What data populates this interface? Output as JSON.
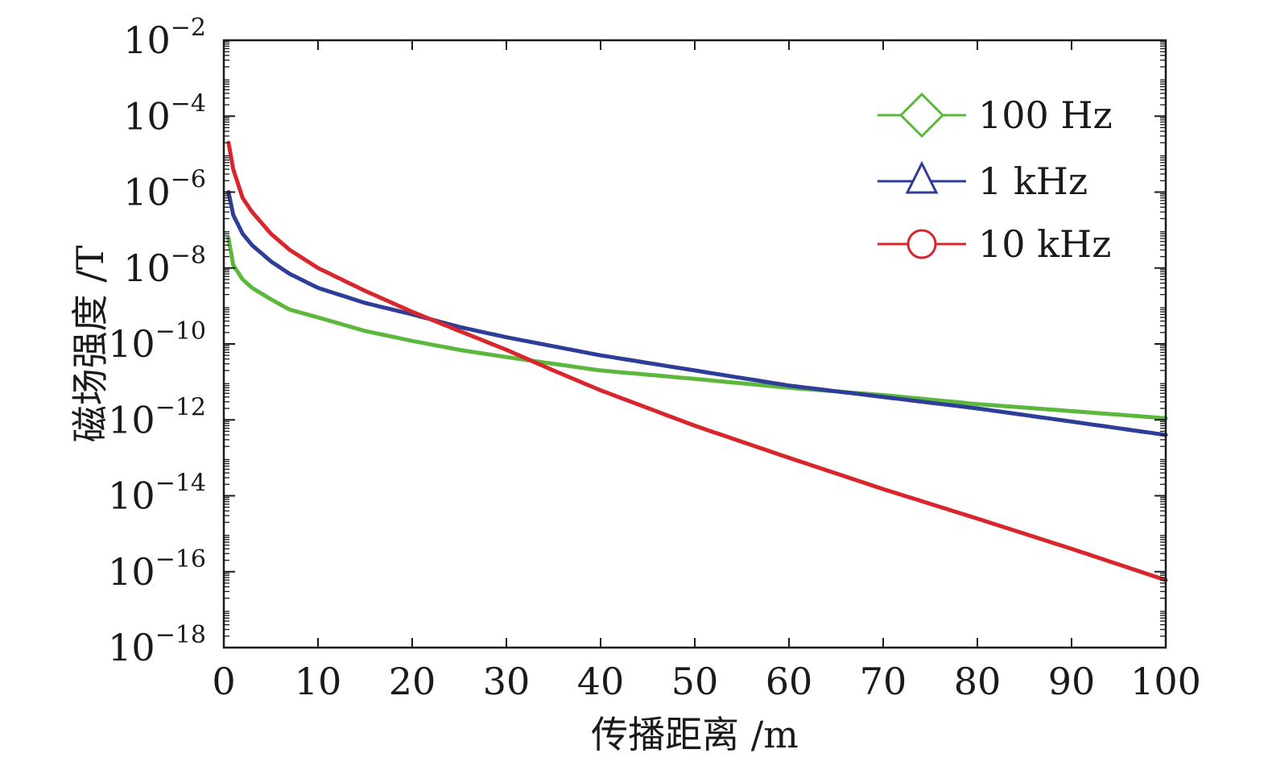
{
  "chart_data": {
    "type": "line",
    "title": "",
    "xlabel": "传播距离 /m",
    "ylabel": "磁场强度 /T",
    "xlim": [
      0,
      100
    ],
    "ylim": [
      1e-18,
      0.01
    ],
    "yscale": "log",
    "grid": false,
    "legend_position": "top-right",
    "x_ticks": [
      {
        "value": 0,
        "label": "0"
      },
      {
        "value": 10,
        "label": "10"
      },
      {
        "value": 20,
        "label": "20"
      },
      {
        "value": 30,
        "label": "30"
      },
      {
        "value": 40,
        "label": "40"
      },
      {
        "value": 50,
        "label": "50"
      },
      {
        "value": 60,
        "label": "60"
      },
      {
        "value": 70,
        "label": "70"
      },
      {
        "value": 80,
        "label": "80"
      },
      {
        "value": 90,
        "label": "90"
      },
      {
        "value": 100,
        "label": "100"
      }
    ],
    "y_ticks": [
      {
        "exponent": -2,
        "base": "10",
        "exp": "−2"
      },
      {
        "exponent": -4,
        "base": "10",
        "exp": "−4"
      },
      {
        "exponent": -6,
        "base": "10",
        "exp": "−6"
      },
      {
        "exponent": -8,
        "base": "10",
        "exp": "−8"
      },
      {
        "exponent": -10,
        "base": "10",
        "exp": "−10"
      },
      {
        "exponent": -12,
        "base": "10",
        "exp": "−12"
      },
      {
        "exponent": -14,
        "base": "10",
        "exp": "−14"
      },
      {
        "exponent": -16,
        "base": "10",
        "exp": "−16"
      },
      {
        "exponent": -18,
        "base": "10",
        "exp": "−18"
      }
    ],
    "series": [
      {
        "name": "100 Hz",
        "color": "#5cb83c",
        "marker": "diamond",
        "x": [
          0.5,
          1,
          2,
          3,
          5,
          7,
          10,
          15,
          20,
          25,
          30,
          40,
          50,
          60,
          70,
          80,
          90,
          100
        ],
        "y": [
          6e-08,
          1.2e-08,
          5e-09,
          3e-09,
          1.5e-09,
          8e-10,
          5e-10,
          2.2e-10,
          1.2e-10,
          7e-11,
          4.5e-11,
          2e-11,
          1.2e-11,
          7e-12,
          4.5e-12,
          2.6e-12,
          1.7e-12,
          1.1e-12
        ]
      },
      {
        "name": "1 kHz",
        "color": "#2e3e98",
        "marker": "triangle",
        "x": [
          0.5,
          1,
          2,
          3,
          5,
          7,
          10,
          15,
          20,
          25,
          30,
          40,
          50,
          60,
          70,
          80,
          90,
          100
        ],
        "y": [
          1e-06,
          2.5e-07,
          8e-08,
          4e-08,
          1.5e-08,
          7e-09,
          3e-09,
          1.2e-09,
          6e-10,
          2.8e-10,
          1.5e-10,
          5e-11,
          2e-11,
          8e-12,
          4e-12,
          2e-12,
          9e-13,
          4e-13
        ]
      },
      {
        "name": "10 kHz",
        "color": "#d8262c",
        "marker": "circle",
        "x": [
          0.5,
          1,
          2,
          3,
          5,
          7,
          10,
          15,
          20,
          25,
          30,
          35,
          40,
          50,
          60,
          70,
          80,
          90,
          100
        ],
        "y": [
          2e-05,
          4e-06,
          7e-07,
          3e-07,
          8e-08,
          3e-08,
          1e-08,
          2.5e-09,
          7e-10,
          2.2e-10,
          7e-11,
          2e-11,
          6e-12,
          7e-13,
          1e-13,
          1.5e-14,
          2.5e-15,
          4e-16,
          6e-17
        ]
      }
    ]
  }
}
